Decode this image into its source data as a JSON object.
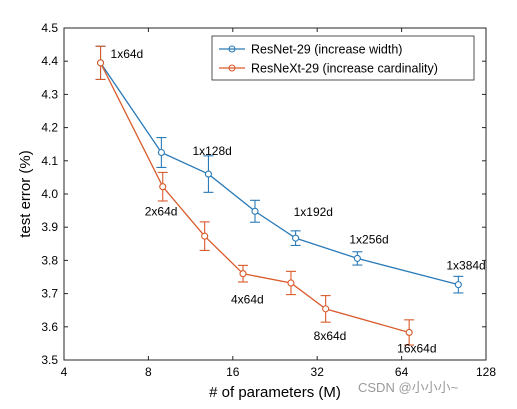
{
  "chart_data": {
    "type": "line",
    "xlabel": "# of parameters (M)",
    "ylabel": "test error (%)",
    "xscale": "log2",
    "xlim": [
      4,
      128
    ],
    "ylim": [
      3.5,
      4.5
    ],
    "x_ticks": [
      4,
      8,
      16,
      32,
      64,
      128
    ],
    "y_ticks": [
      "3.5",
      "3.6",
      "3.7",
      "3.8",
      "3.9",
      "4.0",
      "4.1",
      "4.2",
      "4.3",
      "4.4",
      "4.5"
    ],
    "legend_position": "top-right",
    "series": [
      {
        "name": "ResNet-29 (increase width)",
        "color": "#2a7ab8",
        "marker": "circle",
        "points": [
          {
            "x": 5.4,
            "y": 4.395,
            "err": 0.05,
            "label": "1x64d"
          },
          {
            "x": 8.9,
            "y": 4.125,
            "err": 0.045,
            "label": ""
          },
          {
            "x": 13.1,
            "y": 4.06,
            "err": 0.055,
            "label": "1x128d"
          },
          {
            "x": 19.2,
            "y": 3.948,
            "err": 0.033,
            "label": ""
          },
          {
            "x": 26.8,
            "y": 3.867,
            "err": 0.022,
            "label": "1x192d"
          },
          {
            "x": 44.5,
            "y": 3.806,
            "err": 0.02,
            "label": "1x256d"
          },
          {
            "x": 102,
            "y": 3.727,
            "err": 0.025,
            "label": "1x384d"
          }
        ]
      },
      {
        "name": "ResNeXt-29 (increase cardinality)",
        "color": "#d95a2b",
        "marker": "circle",
        "points": [
          {
            "x": 5.4,
            "y": 4.395,
            "err": 0.05,
            "label": ""
          },
          {
            "x": 9.0,
            "y": 4.022,
            "err": 0.043,
            "label": "2x64d"
          },
          {
            "x": 12.7,
            "y": 3.873,
            "err": 0.043,
            "label": ""
          },
          {
            "x": 17.4,
            "y": 3.76,
            "err": 0.025,
            "label": "4x64d"
          },
          {
            "x": 25.8,
            "y": 3.732,
            "err": 0.035,
            "label": ""
          },
          {
            "x": 34.3,
            "y": 3.654,
            "err": 0.04,
            "label": "8x64d"
          },
          {
            "x": 68.1,
            "y": 3.583,
            "err": 0.038,
            "label": "16x64d"
          }
        ]
      }
    ]
  },
  "watermark": "CSDN @小小小~"
}
